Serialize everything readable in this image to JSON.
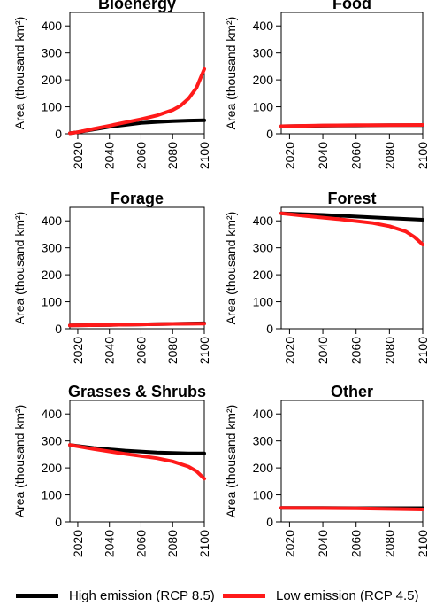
{
  "chart_data": [
    {
      "type": "line",
      "title": "Bioenergy",
      "ylabel": "Area (thousand km²)",
      "xlim": [
        2015,
        2100
      ],
      "ylim": [
        0,
        450
      ],
      "xticks": [
        2020,
        2040,
        2060,
        2080,
        2100
      ],
      "yticks": [
        0,
        100,
        200,
        300,
        400
      ],
      "series": [
        {
          "name": "High emission (RCP 8.5)",
          "color": "#000000",
          "x": [
            2015,
            2020,
            2030,
            2040,
            2050,
            2060,
            2070,
            2080,
            2090,
            2100
          ],
          "values": [
            2,
            6,
            16,
            26,
            33,
            40,
            44,
            47,
            49,
            50
          ]
        },
        {
          "name": "Low emission (RCP 4.5)",
          "color": "#ff1a1a",
          "x": [
            2015,
            2020,
            2030,
            2040,
            2050,
            2060,
            2070,
            2080,
            2085,
            2090,
            2095,
            2100
          ],
          "values": [
            2,
            6,
            18,
            30,
            42,
            54,
            68,
            88,
            104,
            130,
            170,
            240
          ]
        }
      ]
    },
    {
      "type": "line",
      "title": "Food",
      "ylabel": "Area (thousand km²)",
      "xlim": [
        2015,
        2100
      ],
      "ylim": [
        0,
        450
      ],
      "xticks": [
        2020,
        2040,
        2060,
        2080,
        2100
      ],
      "yticks": [
        0,
        100,
        200,
        300,
        400
      ],
      "series": [
        {
          "name": "High emission (RCP 8.5)",
          "color": "#000000",
          "x": [
            2015,
            2040,
            2060,
            2080,
            2100
          ],
          "values": [
            28,
            30,
            31,
            32,
            32
          ]
        },
        {
          "name": "Low emission (RCP 4.5)",
          "color": "#ff1a1a",
          "x": [
            2015,
            2040,
            2060,
            2080,
            2100
          ],
          "values": [
            28,
            31,
            32,
            32,
            33
          ]
        }
      ]
    },
    {
      "type": "line",
      "title": "Forage",
      "ylabel": "Area (thousand km²)",
      "xlim": [
        2015,
        2100
      ],
      "ylim": [
        0,
        450
      ],
      "xticks": [
        2020,
        2040,
        2060,
        2080,
        2100
      ],
      "yticks": [
        0,
        100,
        200,
        300,
        400
      ],
      "series": [
        {
          "name": "High emission (RCP 8.5)",
          "color": "#000000",
          "x": [
            2015,
            2040,
            2060,
            2080,
            2100
          ],
          "values": [
            12,
            14,
            16,
            18,
            20
          ]
        },
        {
          "name": "Low emission (RCP 4.5)",
          "color": "#ff1a1a",
          "x": [
            2015,
            2040,
            2060,
            2080,
            2100
          ],
          "values": [
            12,
            14,
            16,
            18,
            19
          ]
        }
      ]
    },
    {
      "type": "line",
      "title": "Forest",
      "ylabel": "Area (thousand km²)",
      "xlim": [
        2015,
        2100
      ],
      "ylim": [
        0,
        450
      ],
      "xticks": [
        2020,
        2040,
        2060,
        2080,
        2100
      ],
      "yticks": [
        0,
        100,
        200,
        300,
        400
      ],
      "series": [
        {
          "name": "High emission (RCP 8.5)",
          "color": "#000000",
          "x": [
            2015,
            2040,
            2060,
            2080,
            2100
          ],
          "values": [
            428,
            422,
            416,
            410,
            404
          ]
        },
        {
          "name": "Low emission (RCP 4.5)",
          "color": "#ff1a1a",
          "x": [
            2015,
            2030,
            2050,
            2070,
            2080,
            2090,
            2095,
            2100
          ],
          "values": [
            428,
            418,
            406,
            392,
            380,
            360,
            340,
            312
          ]
        }
      ]
    },
    {
      "type": "line",
      "title": "Grasses & Shrubs",
      "ylabel": "Area (thousand km²)",
      "xlim": [
        2015,
        2100
      ],
      "ylim": [
        0,
        450
      ],
      "xticks": [
        2020,
        2040,
        2060,
        2080,
        2100
      ],
      "yticks": [
        0,
        100,
        200,
        300,
        400
      ],
      "series": [
        {
          "name": "High emission (RCP 8.5)",
          "color": "#000000",
          "x": [
            2015,
            2030,
            2050,
            2070,
            2090,
            2100
          ],
          "values": [
            285,
            274,
            264,
            257,
            254,
            254
          ]
        },
        {
          "name": "Low emission (RCP 4.5)",
          "color": "#ff1a1a",
          "x": [
            2015,
            2030,
            2050,
            2070,
            2080,
            2090,
            2095,
            2100
          ],
          "values": [
            285,
            270,
            252,
            236,
            224,
            205,
            188,
            160
          ]
        }
      ]
    },
    {
      "type": "line",
      "title": "Other",
      "ylabel": "Area (thousand km²)",
      "xlim": [
        2015,
        2100
      ],
      "ylim": [
        0,
        450
      ],
      "xticks": [
        2020,
        2040,
        2060,
        2080,
        2100
      ],
      "yticks": [
        0,
        100,
        200,
        300,
        400
      ],
      "series": [
        {
          "name": "High emission (RCP 8.5)",
          "color": "#000000",
          "x": [
            2015,
            2040,
            2060,
            2080,
            2100
          ],
          "values": [
            52,
            52,
            51,
            51,
            51
          ]
        },
        {
          "name": "Low emission (RCP 4.5)",
          "color": "#ff1a1a",
          "x": [
            2015,
            2040,
            2060,
            2080,
            2100
          ],
          "values": [
            52,
            51,
            50,
            48,
            46
          ]
        }
      ]
    }
  ],
  "legend": [
    {
      "label": "High emission (RCP 8.5)",
      "color": "#000000"
    },
    {
      "label": "Low emission (RCP 4.5)",
      "color": "#ff1a1a"
    }
  ]
}
